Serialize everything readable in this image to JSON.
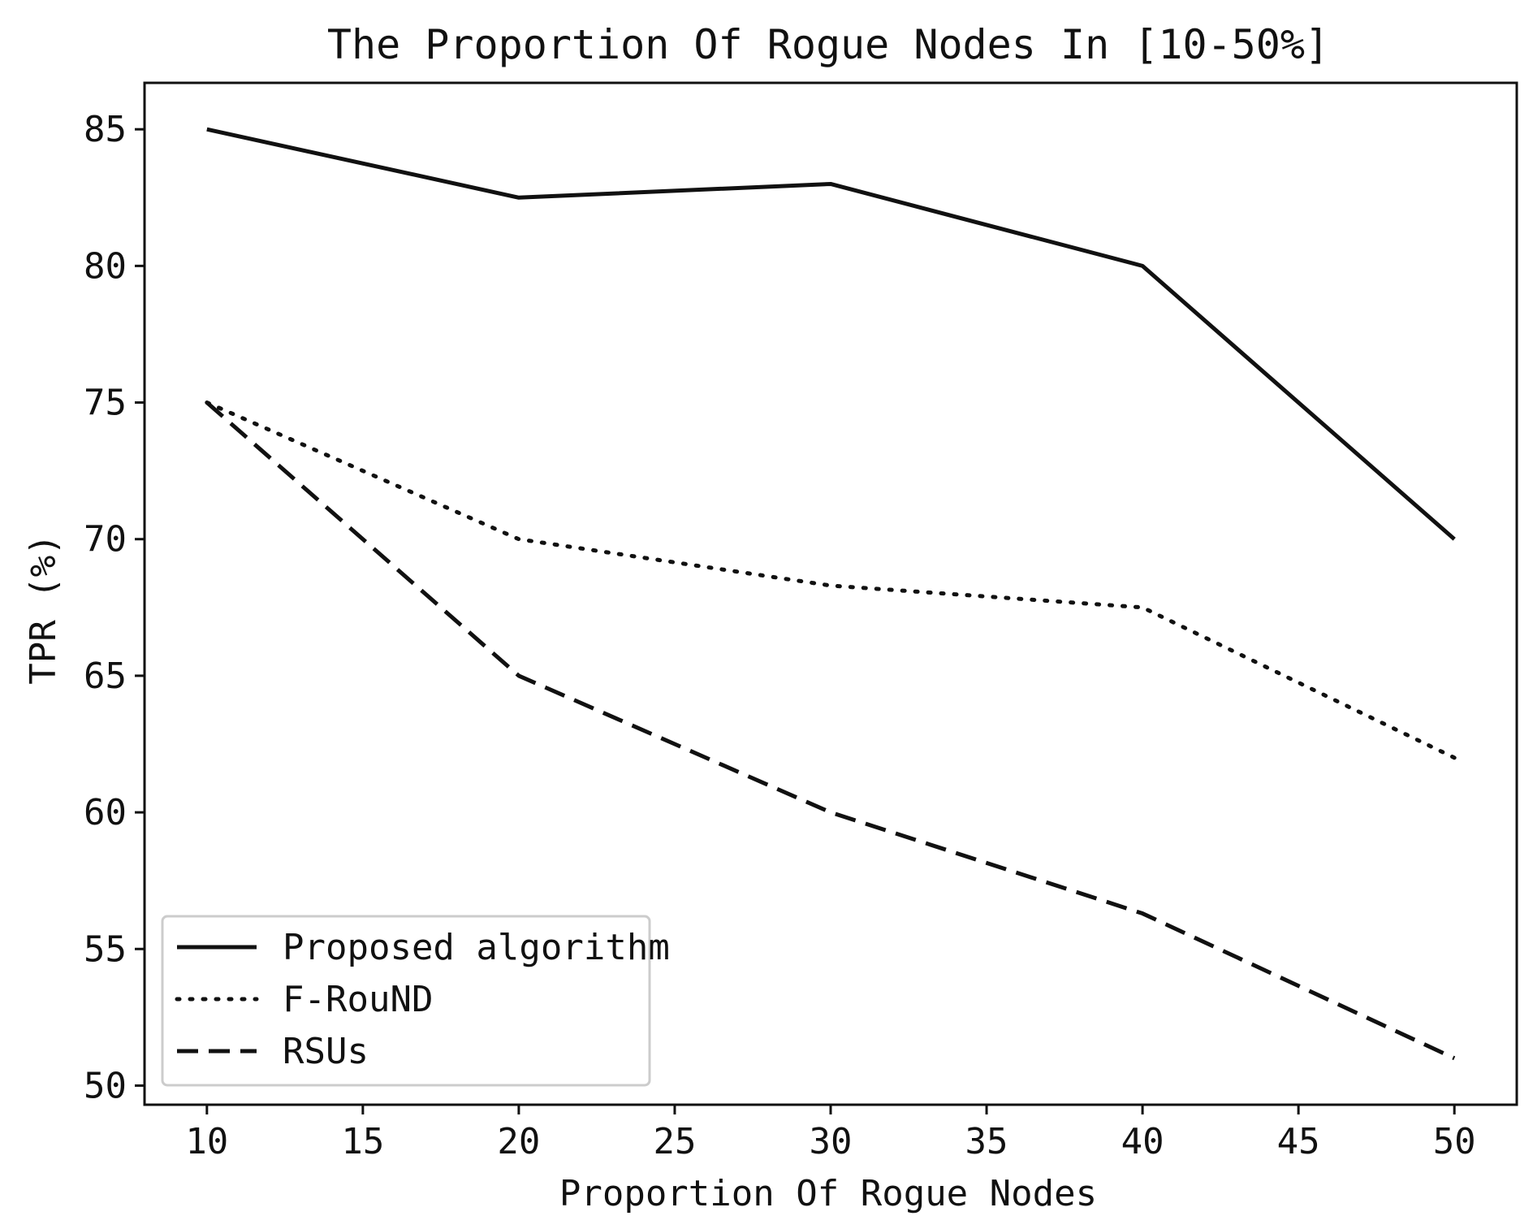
{
  "chart_data": {
    "type": "line",
    "title": "The Proportion Of Rogue Nodes In [10-50%]",
    "xlabel": "Proportion Of Rogue Nodes",
    "ylabel": "TPR (%)",
    "x": [
      10,
      20,
      30,
      40,
      50
    ],
    "xlim": [
      8,
      52
    ],
    "ylim": [
      49.3,
      86.7
    ],
    "xticks": [
      10,
      15,
      20,
      25,
      30,
      35,
      40,
      45,
      50
    ],
    "yticks": [
      50,
      55,
      60,
      65,
      70,
      75,
      80,
      85
    ],
    "grid": false,
    "legend_position": "lower-left",
    "series": [
      {
        "name": "Proposed algorithm",
        "style": "solid",
        "values": [
          85,
          82.5,
          83,
          80,
          70
        ]
      },
      {
        "name": "F-RouND",
        "style": "dotted",
        "values": [
          75,
          70,
          68.3,
          67.5,
          62
        ]
      },
      {
        "name": "RSUs",
        "style": "dashed",
        "values": [
          75,
          65,
          60,
          56.3,
          51
        ]
      }
    ],
    "colors": {
      "line": "#111111",
      "axis": "#111111",
      "legend_border": "#cccccc",
      "background": "#ffffff"
    }
  }
}
